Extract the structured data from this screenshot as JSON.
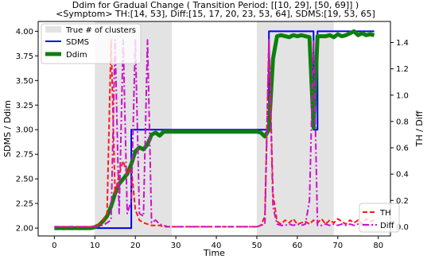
{
  "figure": {
    "title_line1": "Ddim for Gradual Change ( Transition Period: [[10, 29], [50, 69]] )",
    "title_line2": "<Symptom> TH:[14, 53], Diff:[15, 17, 20, 23, 53, 64], SDMS:[19, 53, 65]"
  },
  "chart_data": {
    "type": "line",
    "title": "Ddim for Gradual Change ( Transition Period: [[10, 29], [50, 69]] )",
    "subtitle": "<Symptom> TH:[14, 53], Diff:[15, 17, 20, 23, 53, 64], SDMS:[19, 53, 65]",
    "xlabel": "Time",
    "ylabel_left": "SDMS / Ddim",
    "ylabel_right": "TH / Diff",
    "xlim": [
      -4,
      83
    ],
    "ylim_left": [
      1.92,
      4.1
    ],
    "ylim_right": [
      -0.07,
      1.56
    ],
    "x_ticks": [
      0,
      10,
      20,
      30,
      40,
      50,
      60,
      70,
      80
    ],
    "y_left_ticks": [
      "2.00",
      "2.25",
      "2.50",
      "2.75",
      "3.00",
      "3.25",
      "3.50",
      "3.75",
      "4.00"
    ],
    "y_right_ticks": [
      "0.0",
      "0.2",
      "0.4",
      "0.6",
      "0.8",
      "1.0",
      "1.2",
      "1.4"
    ],
    "shaded_regions": [
      [
        10,
        29
      ],
      [
        50,
        69
      ]
    ],
    "grid": false,
    "legend_left_placement": "top-left",
    "legend_right_placement": "bottom-right",
    "legend_left": [
      "True # of clusters",
      "SDMS",
      "Ddim"
    ],
    "legend_right": [
      "TH",
      "Diff"
    ],
    "colors": {
      "shade": "#e3e3e3",
      "sdms": "#0000ee",
      "ddim": "#0d7f0d",
      "th": "#ff1a1a",
      "diff": "#cc11cc"
    },
    "series": [
      {
        "name": "SDMS",
        "axis": "left",
        "style": "solid",
        "x": [
          0,
          19,
          19,
          53,
          53,
          64,
          64,
          65,
          65,
          79
        ],
        "y": [
          2.0,
          2.0,
          3.0,
          3.0,
          4.0,
          4.0,
          3.0,
          3.0,
          4.0,
          4.0
        ]
      },
      {
        "name": "Ddim",
        "axis": "left",
        "style": "solid",
        "x": [
          0,
          1,
          2,
          3,
          4,
          5,
          6,
          7,
          8,
          9,
          10,
          11,
          12,
          13,
          14,
          15,
          16,
          17,
          18,
          19,
          20,
          21,
          22,
          23,
          24,
          25,
          26,
          27,
          28,
          29,
          30,
          31,
          32,
          33,
          34,
          35,
          36,
          37,
          38,
          39,
          40,
          41,
          42,
          43,
          44,
          45,
          46,
          47,
          48,
          49,
          50,
          51,
          52,
          53,
          54,
          55,
          56,
          57,
          58,
          59,
          60,
          61,
          62,
          63,
          64,
          65,
          66,
          67,
          68,
          69,
          70,
          71,
          72,
          73,
          74,
          75,
          76,
          77,
          78,
          79
        ],
        "y": [
          2.0,
          2.0,
          2.0,
          2.0,
          2.0,
          2.0,
          2.0,
          2.0,
          2.0,
          2.0,
          2.01,
          2.03,
          2.07,
          2.12,
          2.22,
          2.35,
          2.45,
          2.5,
          2.55,
          2.65,
          2.78,
          2.82,
          2.8,
          2.85,
          2.95,
          2.97,
          2.94,
          2.98,
          2.98,
          2.98,
          2.98,
          2.98,
          2.98,
          2.98,
          2.98,
          2.98,
          2.98,
          2.98,
          2.98,
          2.98,
          2.98,
          2.98,
          2.98,
          2.98,
          2.98,
          2.98,
          2.98,
          2.98,
          2.98,
          2.98,
          2.98,
          2.97,
          2.93,
          3.0,
          3.72,
          3.95,
          3.96,
          3.95,
          3.94,
          3.96,
          3.95,
          3.96,
          3.95,
          3.94,
          3.02,
          3.95,
          3.95,
          3.95,
          3.96,
          3.94,
          3.97,
          3.95,
          3.96,
          3.98,
          4.0,
          3.96,
          3.98,
          3.96,
          3.97,
          3.96
        ]
      },
      {
        "name": "TH",
        "axis": "right",
        "style": "dashed",
        "x": [
          0,
          1,
          2,
          3,
          4,
          5,
          6,
          7,
          8,
          9,
          10,
          11,
          12,
          13,
          14,
          15,
          16,
          17,
          18,
          19,
          20,
          21,
          22,
          23,
          24,
          25,
          26,
          27,
          28,
          29,
          30,
          31,
          32,
          33,
          34,
          35,
          36,
          37,
          38,
          39,
          40,
          41,
          42,
          43,
          44,
          45,
          46,
          47,
          48,
          49,
          50,
          51,
          52,
          53,
          54,
          55,
          56,
          57,
          58,
          59,
          60,
          61,
          62,
          63,
          64,
          65,
          66,
          67,
          68,
          69,
          70,
          71,
          72,
          73,
          74,
          75,
          76,
          77,
          78,
          79
        ],
        "y": [
          0,
          0,
          0,
          0,
          0,
          0,
          0,
          0,
          0,
          0,
          0,
          0.02,
          0.05,
          0.1,
          1.42,
          0.25,
          0.4,
          0.5,
          0.4,
          0.45,
          0.13,
          0.05,
          0.03,
          0.02,
          0.01,
          0.01,
          0.01,
          0.0,
          0.0,
          0.0,
          0.0,
          0.0,
          0.0,
          0.0,
          0.0,
          0.0,
          0.0,
          0.0,
          0.0,
          0.0,
          0.0,
          0.0,
          0.0,
          0.0,
          0.0,
          0.0,
          0.0,
          0.0,
          0.0,
          0.0,
          0.0,
          0.01,
          0.08,
          1.42,
          0.25,
          0.04,
          0.02,
          0.05,
          0.03,
          0.06,
          0.02,
          0.03,
          0.04,
          0.02,
          0.05,
          0.03,
          0.06,
          0.02,
          0.05,
          0.03,
          0.06,
          0.04,
          0.02,
          0.05,
          0.03,
          0.05,
          0.02,
          0.06,
          0.04,
          0.05
        ]
      },
      {
        "name": "Diff",
        "axis": "right",
        "style": "dashdot",
        "x": [
          0,
          1,
          2,
          3,
          4,
          5,
          6,
          7,
          8,
          9,
          10,
          11,
          12,
          13,
          14,
          15,
          16,
          17,
          18,
          19,
          20,
          21,
          22,
          23,
          24,
          25,
          26,
          27,
          28,
          29,
          30,
          31,
          32,
          33,
          34,
          35,
          36,
          37,
          38,
          39,
          40,
          41,
          42,
          43,
          44,
          45,
          46,
          47,
          48,
          49,
          50,
          51,
          52,
          53,
          54,
          55,
          56,
          57,
          58,
          59,
          60,
          61,
          62,
          63,
          64,
          65,
          66,
          67,
          68,
          69,
          70,
          71,
          72,
          73,
          74,
          75,
          76,
          77,
          78,
          79
        ],
        "y": [
          0,
          0,
          0,
          0,
          0,
          0,
          0,
          0,
          0,
          0,
          0,
          0.01,
          0.01,
          0.03,
          0.05,
          1.42,
          0.1,
          1.42,
          0.1,
          0.2,
          1.42,
          0.1,
          0.08,
          1.42,
          0.03,
          0.05,
          0.02,
          0.01,
          0.0,
          0.0,
          0.0,
          0.0,
          0.0,
          0.0,
          0.0,
          0.0,
          0.0,
          0.0,
          0.0,
          0.0,
          0.0,
          0.0,
          0.0,
          0.0,
          0.0,
          0.0,
          0.0,
          0.0,
          0.0,
          0.0,
          0.0,
          0.01,
          0.02,
          1.42,
          0.15,
          0.02,
          0.01,
          0.01,
          0.02,
          0.01,
          0.02,
          0.01,
          0.02,
          0.2,
          1.42,
          0.01,
          0.01,
          0.02,
          0.01,
          0.02,
          0.01,
          0.02,
          0.01,
          0.02,
          0.01,
          0.02,
          0.01,
          0.02,
          0.01,
          0.02
        ]
      }
    ]
  }
}
